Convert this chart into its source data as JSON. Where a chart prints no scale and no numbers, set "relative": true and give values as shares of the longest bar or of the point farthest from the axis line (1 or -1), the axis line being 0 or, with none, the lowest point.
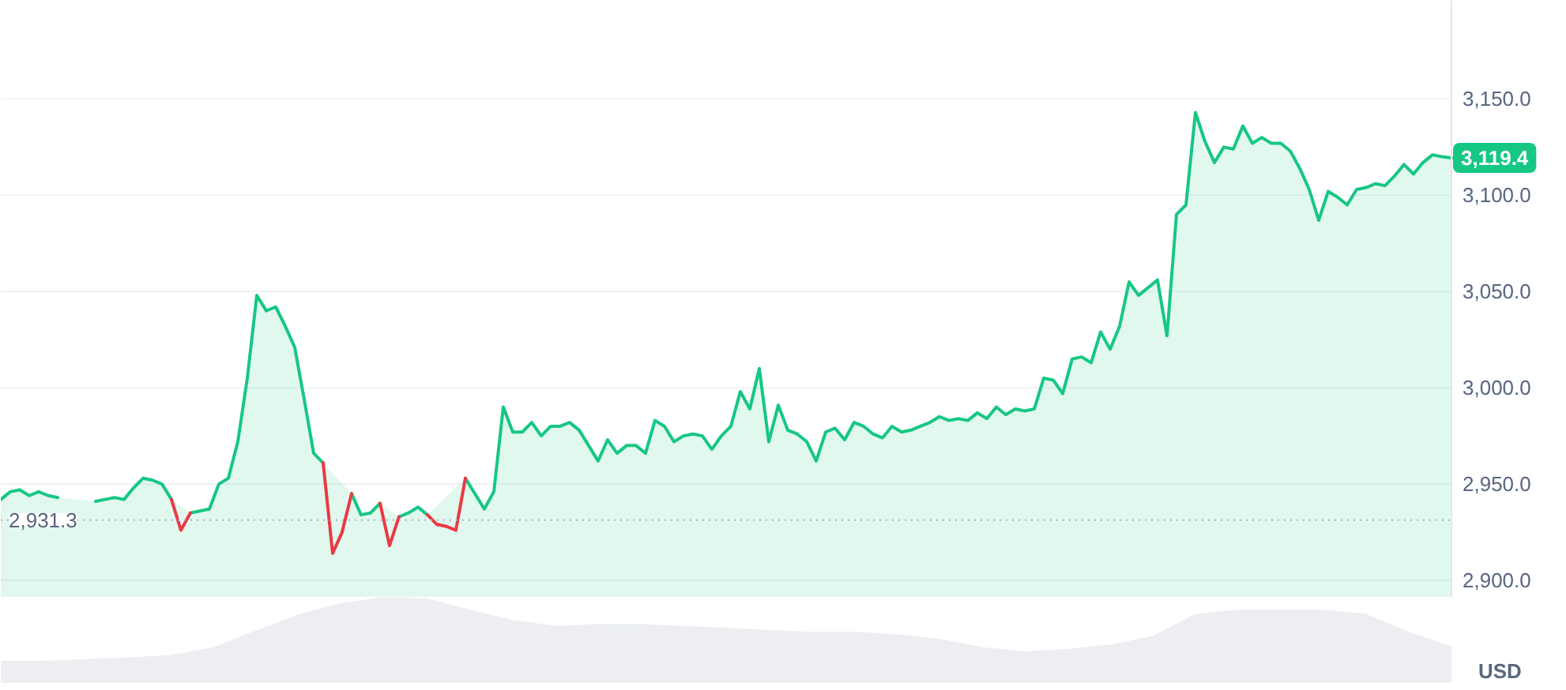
{
  "chart_data": [
    {
      "type": "area",
      "ylabel": "USD",
      "categories": [
        null,
        null,
        null,
        null,
        null,
        null,
        null,
        null,
        null,
        null,
        null,
        null,
        null,
        null,
        null,
        null,
        null,
        null,
        null,
        null,
        null,
        null,
        null,
        null,
        null,
        null,
        null,
        null,
        null,
        null,
        null,
        null,
        null,
        null,
        null,
        null,
        null,
        null,
        null,
        null,
        null,
        null,
        null,
        null,
        null,
        null,
        null,
        null,
        null,
        null,
        null,
        null,
        null,
        null,
        null,
        null,
        null,
        null,
        null,
        null,
        null,
        null,
        null,
        null,
        null,
        null,
        null,
        null,
        null,
        null,
        null,
        null,
        null,
        null,
        null,
        null,
        null,
        null,
        null,
        null,
        null,
        null,
        null,
        null,
        null,
        null,
        null,
        null,
        null,
        null,
        null,
        null,
        null,
        null,
        null,
        null,
        null,
        null,
        null,
        null,
        null,
        null,
        null,
        null,
        null,
        null,
        null,
        null,
        null,
        null,
        null,
        null,
        null,
        null,
        null,
        null,
        null,
        null,
        null,
        null,
        null,
        null,
        null,
        null,
        null,
        null,
        null,
        null,
        null,
        null,
        null,
        null,
        null,
        null,
        null,
        null,
        null,
        null,
        null,
        null,
        null,
        null,
        null,
        null,
        null,
        null,
        null,
        null,
        null,
        null,
        null,
        null,
        null,
        null
      ],
      "series": [
        {
          "type": "area",
          "color": "#16c784",
          "values": [
            2942,
            2946,
            2947,
            2944,
            2946,
            2944,
            2943,
            null,
            null,
            null,
            2941,
            2942,
            2943,
            2942,
            2948,
            2953,
            2952,
            2950,
            2942,
            null,
            2935,
            2936,
            2937,
            2950,
            2953,
            2972,
            3005,
            3048,
            3040,
            3042,
            3032,
            3021,
            2994,
            2966,
            2961,
            null,
            null,
            2945,
            2934,
            2935,
            2940,
            null,
            2933,
            2935,
            2938,
            2934,
            null,
            null,
            null,
            2953,
            2945,
            2937,
            2946,
            2990,
            2977,
            2977,
            2982,
            2975,
            2980,
            2980,
            2982,
            2978,
            2970,
            2962,
            2973,
            2966,
            2970,
            2970,
            2966,
            2983,
            2980,
            2972,
            2975,
            2976,
            2975,
            2968,
            2975,
            2980,
            2998,
            2989,
            3010,
            2972,
            2991,
            2978,
            2976,
            2972,
            2962,
            2977,
            2979,
            2973,
            2982,
            2980,
            2976,
            2974,
            2980,
            2977,
            2978,
            2980,
            2982,
            2985,
            2983,
            2984,
            2983,
            2987,
            2984,
            2990,
            2986,
            2989,
            2988,
            2989,
            3005,
            3004,
            2997,
            3015,
            3016,
            3013,
            3029,
            3020,
            3032,
            3055,
            3048,
            3052,
            3056,
            3027,
            3090,
            3095,
            3143,
            3128,
            3117,
            3125,
            3124,
            3136,
            3127,
            3130,
            3127,
            3127,
            3123,
            3114,
            3103,
            3087,
            3102,
            3099,
            3095,
            3103,
            3104,
            3106,
            3105,
            3110,
            3116,
            3111,
            3117,
            3121,
            3120,
            3119.4
          ],
          "value_labels": [
            null,
            null,
            null,
            null,
            null,
            null,
            null,
            null,
            null,
            null,
            null,
            null,
            null,
            null,
            null,
            null,
            null,
            null,
            null,
            null,
            null,
            null,
            null,
            null,
            null,
            null,
            null,
            null,
            null,
            null,
            null,
            null,
            null,
            null,
            null,
            null,
            null,
            null,
            null,
            null,
            null,
            null,
            null,
            null,
            null,
            null,
            null,
            null,
            null,
            null,
            null,
            null,
            null,
            null,
            null,
            null,
            null,
            null,
            null,
            null,
            null,
            null,
            null,
            null,
            null,
            null,
            null,
            null,
            null,
            null,
            null,
            null,
            null,
            null,
            null,
            null,
            null,
            null,
            null,
            null,
            null,
            null,
            null,
            null,
            null,
            null,
            null,
            null,
            null,
            null,
            null,
            null,
            null,
            null,
            null,
            null,
            null,
            null,
            null,
            null,
            null,
            null,
            null,
            null,
            null,
            null,
            null,
            null,
            null,
            null,
            null,
            null,
            null,
            null,
            null,
            null,
            null,
            null,
            null,
            null,
            null,
            null,
            null,
            null,
            null,
            null,
            null,
            null,
            null,
            null,
            null,
            null,
            null,
            null,
            null,
            null,
            null,
            null,
            null,
            null,
            null,
            null,
            null,
            null,
            null,
            null,
            null,
            null,
            null,
            null,
            null,
            null,
            null,
            "3,119.4"
          ]
        },
        {
          "type": "line",
          "color": "#ea3943",
          "values": [
            null,
            null,
            null,
            null,
            null,
            null,
            null,
            null,
            null,
            null,
            null,
            null,
            null,
            null,
            null,
            null,
            null,
            null,
            2942,
            2926,
            2935,
            null,
            null,
            null,
            null,
            null,
            null,
            null,
            null,
            null,
            null,
            null,
            null,
            null,
            2961,
            2914,
            2925,
            2945,
            null,
            null,
            2940,
            2918,
            2933,
            null,
            null,
            2934,
            2929,
            2928,
            2926,
            2953,
            null,
            null,
            null,
            null,
            null,
            null,
            null,
            null,
            null,
            null,
            null,
            null,
            null,
            null,
            null,
            null,
            null,
            null,
            null,
            null,
            null,
            null,
            null,
            null,
            null,
            null,
            null,
            null,
            null,
            null,
            null,
            null,
            null,
            null,
            null,
            null,
            null,
            null,
            null,
            null,
            null,
            null,
            null,
            null,
            null,
            null,
            null,
            null,
            null,
            null,
            null,
            null,
            null,
            null,
            null,
            null,
            null,
            null,
            null,
            null,
            null,
            null,
            null,
            null,
            null,
            null,
            null,
            null,
            null,
            null,
            null,
            null,
            null,
            null,
            null,
            null,
            null,
            null,
            null,
            null,
            null,
            null,
            null,
            null,
            null,
            null,
            null,
            null,
            null,
            null,
            null,
            null,
            null,
            null,
            null,
            null,
            null,
            null,
            null,
            null,
            null,
            null,
            null,
            null
          ]
        }
      ],
      "ylim": [
        2891,
        3201
      ],
      "yticks": [
        {
          "value": 2900,
          "label": "2,900.0"
        },
        {
          "value": 2950,
          "label": "2,950.0"
        },
        {
          "value": 3000,
          "label": "3,000.0"
        },
        {
          "value": 3050,
          "label": "3,050.0"
        },
        {
          "value": 3100,
          "label": "3,100.0"
        },
        {
          "value": 3150,
          "label": "3,150.0"
        }
      ],
      "grid": "y",
      "tick_labels": "y",
      "ref_lines": [
        {
          "axis": "y",
          "value": 2931.3,
          "label": "2,931.3",
          "color": "#a6b0c3",
          "line_style": "dotted"
        }
      ]
    },
    {
      "type": "area",
      "relative": true,
      "tick_labels": false,
      "categories": [
        null,
        null,
        null,
        null,
        null,
        null,
        null,
        null,
        null,
        null,
        null,
        null,
        null,
        null,
        null,
        null,
        null,
        null,
        null,
        null,
        null,
        null,
        null,
        null,
        null,
        null,
        null,
        null,
        null,
        null,
        null,
        null,
        null,
        null,
        null
      ],
      "series": [
        {
          "color": "#eceef2",
          "values": [
            0.25,
            0.25,
            0.27,
            0.29,
            0.32,
            0.41,
            0.61,
            0.8,
            0.93,
            1,
            0.98,
            0.85,
            0.73,
            0.66,
            0.68,
            0.68,
            0.66,
            0.64,
            0.61,
            0.59,
            0.59,
            0.56,
            0.51,
            0.41,
            0.36,
            0.39,
            0.44,
            0.54,
            0.8,
            0.85,
            0.85,
            0.85,
            0.8,
            0.59,
            0.42
          ]
        }
      ]
    }
  ]
}
